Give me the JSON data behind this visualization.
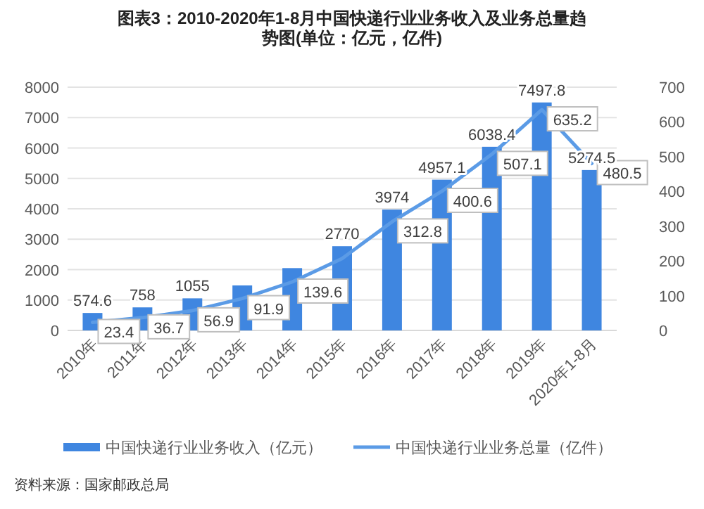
{
  "chart_data": {
    "type": "bar",
    "title": "图表3：2010-2020年1-8月中国快递行业业务收入及业务总量趋势图(单位：亿元，亿件)",
    "categories": [
      "2010年",
      "2011年",
      "2012年",
      "2013年",
      "2014年",
      "2015年",
      "2016年",
      "2017年",
      "2018年",
      "2019年",
      "2020年1-8月"
    ],
    "series": [
      {
        "name": "中国快递行业业务收入（亿元）",
        "color": "#3f86e0",
        "values": [
          574.6,
          758,
          1055,
          1480,
          2050,
          2770,
          3974,
          4957.1,
          6038.4,
          7497.8,
          5274.5
        ],
        "value_labels": [
          "574.6",
          "758",
          "1055",
          null,
          null,
          "2770",
          "3974",
          "4957.1",
          "6038.4",
          "7497.8",
          "5274.5"
        ]
      },
      {
        "name": "中国快递行业业务总量（亿件）",
        "type": "line",
        "axis": "y2",
        "color": "#5b9be6",
        "values": [
          23.4,
          36.7,
          56.9,
          91.9,
          139.6,
          207,
          312.8,
          400.6,
          507.1,
          635.2,
          480.5
        ],
        "value_labels": [
          "23.4",
          "36.7",
          "56.9",
          "91.9",
          "139.6",
          null,
          "312.8",
          "400.6",
          "507.1",
          "635.2",
          "480.5"
        ]
      }
    ],
    "ylim": [
      0,
      8000
    ],
    "yticks": [
      0,
      1000,
      2000,
      3000,
      4000,
      5000,
      6000,
      7000,
      8000
    ],
    "y2lim": [
      0,
      700
    ],
    "y2ticks": [
      0,
      100,
      200,
      300,
      400,
      500,
      600,
      700
    ],
    "grid": "y",
    "legend": "bottom",
    "annotations": [
      "资料来源：国家邮政总局"
    ]
  }
}
